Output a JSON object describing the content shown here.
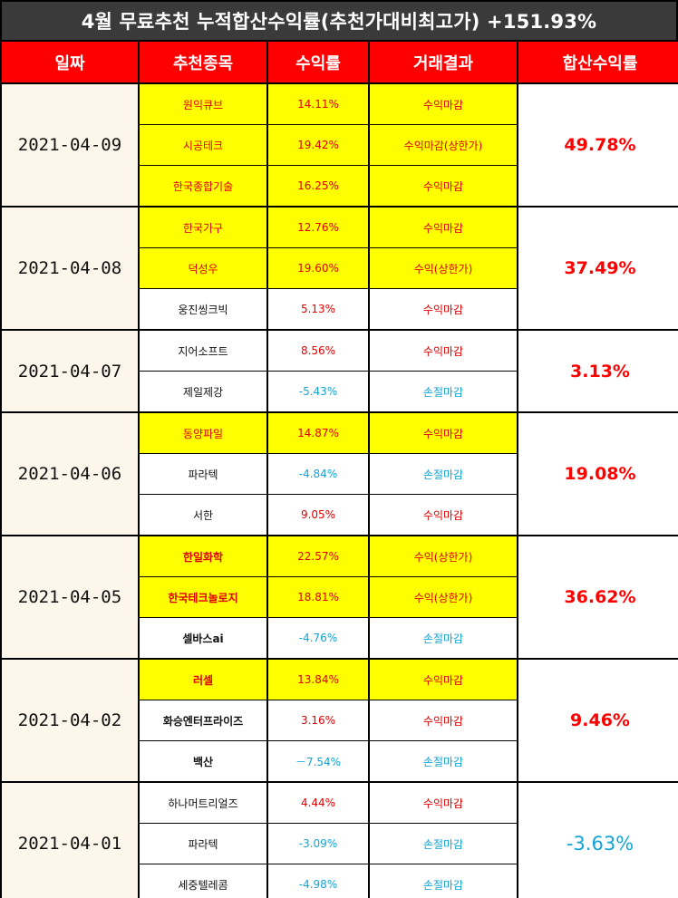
{
  "title": "4월 무료추천 누적합산수익률(추천가대비최고가) +151.93%",
  "headers": {
    "date": "일짜",
    "stock": "추천종목",
    "return": "수익률",
    "result": "거래결과",
    "total": "합산수익률"
  },
  "colors": {
    "header_bg": "#ff0000",
    "title_bg": "#3a3a3a",
    "highlight": "#ffff00",
    "profit": "#e00000",
    "loss": "#12a4d6",
    "date_bg": "#fdf6ea"
  },
  "groups": [
    {
      "date": "2021-04-09",
      "total": "49.78%",
      "total_color": "red",
      "rows": [
        {
          "name": "원익큐브",
          "return": "14.11%",
          "result": "수익마감",
          "highlight": true,
          "color": "red",
          "bold": false
        },
        {
          "name": "시공테크",
          "return": "19.42%",
          "result": "수익마감(상한가)",
          "highlight": true,
          "color": "red",
          "bold": false
        },
        {
          "name": "한국종합기술",
          "return": "16.25%",
          "result": "수익마감",
          "highlight": true,
          "color": "red",
          "bold": false
        }
      ]
    },
    {
      "date": "2021-04-08",
      "total": "37.49%",
      "total_color": "red",
      "rows": [
        {
          "name": "한국가구",
          "return": "12.76%",
          "result": "수익마감",
          "highlight": true,
          "color": "red",
          "bold": false
        },
        {
          "name": "덕성우",
          "return": "19.60%",
          "result": "수익(상한가)",
          "highlight": true,
          "color": "red",
          "bold": false
        },
        {
          "name": "웅진씽크빅",
          "return": "5.13%",
          "result": "수익마감",
          "highlight": false,
          "color": "red",
          "bold": false
        }
      ]
    },
    {
      "date": "2021-04-07",
      "total": "3.13%",
      "total_color": "red",
      "rows": [
        {
          "name": "지어소프트",
          "return": "8.56%",
          "result": "수익마감",
          "highlight": false,
          "color": "red",
          "bold": false
        },
        {
          "name": "제일제강",
          "return": "-5.43%",
          "result": "손절마감",
          "highlight": false,
          "color": "blue",
          "bold": false
        }
      ]
    },
    {
      "date": "2021-04-06",
      "total": "19.08%",
      "total_color": "red",
      "rows": [
        {
          "name": "동양파일",
          "return": "14.87%",
          "result": "수익마감",
          "highlight": true,
          "color": "red",
          "bold": false
        },
        {
          "name": "파라텍",
          "return": "-4.84%",
          "result": "손절마감",
          "highlight": false,
          "color": "blue",
          "bold": false
        },
        {
          "name": "서한",
          "return": "9.05%",
          "result": "수익마감",
          "highlight": false,
          "color": "red",
          "bold": false
        }
      ]
    },
    {
      "date": "2021-04-05",
      "total": "36.62%",
      "total_color": "red",
      "rows": [
        {
          "name": "한일화학",
          "return": "22.57%",
          "result": "수익(상한가)",
          "highlight": true,
          "color": "red",
          "bold": true
        },
        {
          "name": "한국테크놀로지",
          "return": "18.81%",
          "result": "수익(상한가)",
          "highlight": true,
          "color": "red",
          "bold": true
        },
        {
          "name": "셀바스ai",
          "return": "-4.76%",
          "result": "손절마감",
          "highlight": false,
          "color": "blue",
          "bold": true
        }
      ]
    },
    {
      "date": "2021-04-02",
      "total": "9.46%",
      "total_color": "red",
      "rows": [
        {
          "name": "러셀",
          "return": "13.84%",
          "result": "수익마감",
          "highlight": true,
          "color": "red",
          "bold": true
        },
        {
          "name": "화승엔터프라이즈",
          "return": "3.16%",
          "result": "수익마감",
          "highlight": false,
          "color": "red",
          "bold": true
        },
        {
          "name": "백산",
          "return": "－7.54%",
          "result": "손절마감",
          "highlight": false,
          "color": "blue",
          "bold": true
        }
      ]
    },
    {
      "date": "2021-04-01",
      "total": "-3.63%",
      "total_color": "blue",
      "rows": [
        {
          "name": "하나머트리얼즈",
          "return": "4.44%",
          "result": "수익마감",
          "highlight": false,
          "color": "red",
          "bold": false
        },
        {
          "name": "파라텍",
          "return": "-3.09%",
          "result": "손절마감",
          "highlight": false,
          "color": "blue",
          "bold": false
        },
        {
          "name": "세중텔레콤",
          "return": "-4.98%",
          "result": "손절마감",
          "highlight": false,
          "color": "blue",
          "bold": false
        }
      ]
    }
  ]
}
